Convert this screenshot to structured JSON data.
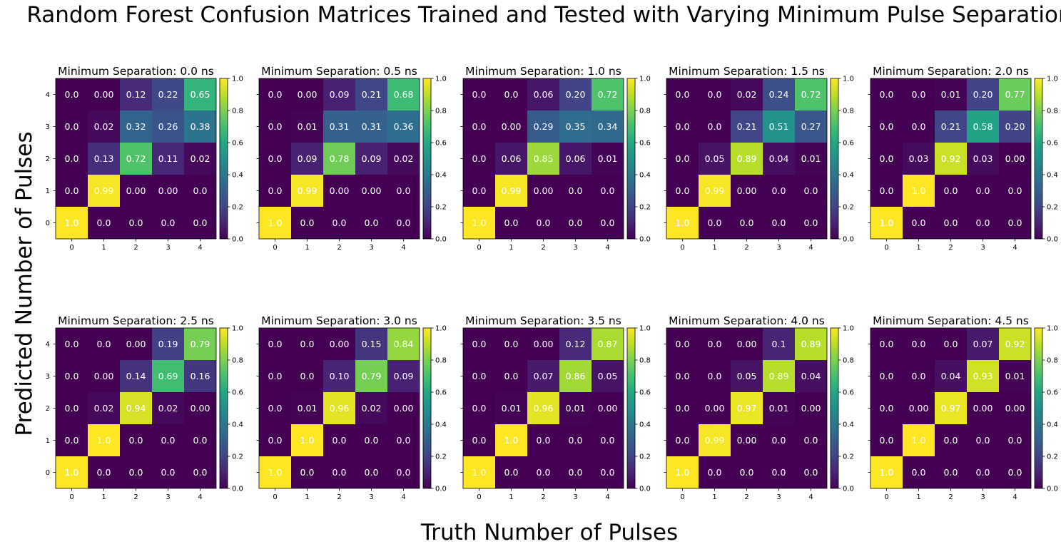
{
  "figure": {
    "title": "Random Forest Confusion Matrices Trained and Tested with Varying Minimum Pulse Separation",
    "xlabel": "Truth Number of Pulses",
    "ylabel": "Predicted Number of Pulses",
    "colormap": "viridis"
  },
  "chart_data": [
    {
      "type": "heatmap",
      "title": "Minimum Separation: 0.0 ns",
      "x": [
        0,
        1,
        2,
        3,
        4
      ],
      "y": [
        0,
        1,
        2,
        3,
        4
      ],
      "clim": [
        0,
        1
      ],
      "colorbar_ticks": [
        "0.0",
        "0.2",
        "0.4",
        "0.6",
        "0.8",
        "1.0"
      ],
      "labels": [
        [
          "1.0",
          "0.0",
          "0.0",
          "0.0",
          "0.0"
        ],
        [
          "0.0",
          "0.99",
          "0.00",
          "0.00",
          "0.0"
        ],
        [
          "0.0",
          "0.13",
          "0.72",
          "0.11",
          "0.02"
        ],
        [
          "0.0",
          "0.02",
          "0.32",
          "0.26",
          "0.38"
        ],
        [
          "0.0",
          "0.00",
          "0.12",
          "0.22",
          "0.65"
        ]
      ]
    },
    {
      "type": "heatmap",
      "title": "Minimum Separation: 0.5 ns",
      "x": [
        0,
        1,
        2,
        3,
        4
      ],
      "y": [
        0,
        1,
        2,
        3,
        4
      ],
      "clim": [
        0,
        1
      ],
      "colorbar_ticks": [
        "0.0",
        "0.2",
        "0.4",
        "0.6",
        "0.8",
        "1.0"
      ],
      "labels": [
        [
          "1.0",
          "0.0",
          "0.0",
          "0.0",
          "0.0"
        ],
        [
          "0.0",
          "0.99",
          "0.00",
          "0.00",
          "0.0"
        ],
        [
          "0.0",
          "0.09",
          "0.78",
          "0.09",
          "0.02"
        ],
        [
          "0.0",
          "0.01",
          "0.31",
          "0.31",
          "0.36"
        ],
        [
          "0.0",
          "0.00",
          "0.09",
          "0.21",
          "0.68"
        ]
      ]
    },
    {
      "type": "heatmap",
      "title": "Minimum Separation: 1.0 ns",
      "x": [
        0,
        1,
        2,
        3,
        4
      ],
      "y": [
        0,
        1,
        2,
        3,
        4
      ],
      "clim": [
        0,
        1
      ],
      "colorbar_ticks": [
        "0.0",
        "0.2",
        "0.4",
        "0.6",
        "0.8",
        "1.0"
      ],
      "labels": [
        [
          "1.0",
          "0.0",
          "0.0",
          "0.0",
          "0.0"
        ],
        [
          "0.0",
          "0.99",
          "0.00",
          "0.0",
          "0.0"
        ],
        [
          "0.0",
          "0.06",
          "0.85",
          "0.06",
          "0.01"
        ],
        [
          "0.0",
          "0.00",
          "0.29",
          "0.35",
          "0.34"
        ],
        [
          "0.0",
          "0.0",
          "0.06",
          "0.20",
          "0.72"
        ]
      ]
    },
    {
      "type": "heatmap",
      "title": "Minimum Separation: 1.5 ns",
      "x": [
        0,
        1,
        2,
        3,
        4
      ],
      "y": [
        0,
        1,
        2,
        3,
        4
      ],
      "clim": [
        0,
        1
      ],
      "colorbar_ticks": [
        "0.0",
        "0.2",
        "0.4",
        "0.6",
        "0.8",
        "1.0"
      ],
      "labels": [
        [
          "1.0",
          "0.0",
          "0.0",
          "0.0",
          "0.0"
        ],
        [
          "0.0",
          "0.99",
          "0.00",
          "0.0",
          "0.0"
        ],
        [
          "0.0",
          "0.05",
          "0.89",
          "0.04",
          "0.01"
        ],
        [
          "0.0",
          "0.0",
          "0.21",
          "0.51",
          "0.27"
        ],
        [
          "0.0",
          "0.0",
          "0.02",
          "0.24",
          "0.72"
        ]
      ]
    },
    {
      "type": "heatmap",
      "title": "Minimum Separation: 2.0 ns",
      "x": [
        0,
        1,
        2,
        3,
        4
      ],
      "y": [
        0,
        1,
        2,
        3,
        4
      ],
      "clim": [
        0,
        1
      ],
      "colorbar_ticks": [
        "0.0",
        "0.2",
        "0.4",
        "0.6",
        "0.8",
        "1.0"
      ],
      "labels": [
        [
          "1.0",
          "0.0",
          "0.0",
          "0.0",
          "0.0"
        ],
        [
          "0.0",
          "1.0",
          "0.0",
          "0.0",
          "0.0"
        ],
        [
          "0.0",
          "0.03",
          "0.92",
          "0.03",
          "0.00"
        ],
        [
          "0.0",
          "0.0",
          "0.21",
          "0.58",
          "0.20"
        ],
        [
          "0.0",
          "0.0",
          "0.01",
          "0.20",
          "0.77"
        ]
      ]
    },
    {
      "type": "heatmap",
      "title": "Minimum Separation: 2.5 ns",
      "x": [
        0,
        1,
        2,
        3,
        4
      ],
      "y": [
        0,
        1,
        2,
        3,
        4
      ],
      "clim": [
        0,
        1
      ],
      "colorbar_ticks": [
        "0.0",
        "0.2",
        "0.4",
        "0.6",
        "0.8",
        "1.0"
      ],
      "labels": [
        [
          "1.0",
          "0.0",
          "0.0",
          "0.0",
          "0.0"
        ],
        [
          "0.0",
          "1.0",
          "0.0",
          "0.0",
          "0.0"
        ],
        [
          "0.0",
          "0.02",
          "0.94",
          "0.02",
          "0.00"
        ],
        [
          "0.0",
          "0.00",
          "0.14",
          "0.69",
          "0.16"
        ],
        [
          "0.0",
          "0.0",
          "0.00",
          "0.19",
          "0.79"
        ]
      ]
    },
    {
      "type": "heatmap",
      "title": "Minimum Separation: 3.0 ns",
      "x": [
        0,
        1,
        2,
        3,
        4
      ],
      "y": [
        0,
        1,
        2,
        3,
        4
      ],
      "clim": [
        0,
        1
      ],
      "colorbar_ticks": [
        "0.0",
        "0.2",
        "0.4",
        "0.6",
        "0.8",
        "1.0"
      ],
      "labels": [
        [
          "1.0",
          "0.0",
          "0.0",
          "0.0",
          "0.0"
        ],
        [
          "0.0",
          "1.0",
          "0.0",
          "0.0",
          "0.0"
        ],
        [
          "0.0",
          "0.01",
          "0.96",
          "0.02",
          "0.00"
        ],
        [
          "0.0",
          "0.0",
          "0.10",
          "0.79",
          "0.09"
        ],
        [
          "0.0",
          "0.0",
          "0.00",
          "0.15",
          "0.84"
        ]
      ]
    },
    {
      "type": "heatmap",
      "title": "Minimum Separation: 3.5 ns",
      "x": [
        0,
        1,
        2,
        3,
        4
      ],
      "y": [
        0,
        1,
        2,
        3,
        4
      ],
      "clim": [
        0,
        1
      ],
      "colorbar_ticks": [
        "0.0",
        "0.2",
        "0.4",
        "0.6",
        "0.8",
        "1.0"
      ],
      "labels": [
        [
          "1.0",
          "0.0",
          "0.0",
          "0.0",
          "0.0"
        ],
        [
          "0.0",
          "1.0",
          "0.0",
          "0.0",
          "0.0"
        ],
        [
          "0.0",
          "0.01",
          "0.96",
          "0.01",
          "0.00"
        ],
        [
          "0.0",
          "0.0",
          "0.07",
          "0.86",
          "0.05"
        ],
        [
          "0.0",
          "0.0",
          "0.00",
          "0.12",
          "0.87"
        ]
      ]
    },
    {
      "type": "heatmap",
      "title": "Minimum Separation: 4.0 ns",
      "x": [
        0,
        1,
        2,
        3,
        4
      ],
      "y": [
        0,
        1,
        2,
        3,
        4
      ],
      "clim": [
        0,
        1
      ],
      "colorbar_ticks": [
        "0.0",
        "0.2",
        "0.4",
        "0.6",
        "0.8",
        "1.0"
      ],
      "labels": [
        [
          "1.0",
          "0.0",
          "0.0",
          "0.0",
          "0.0"
        ],
        [
          "0.0",
          "0.99",
          "0.00",
          "0.0",
          "0.0"
        ],
        [
          "0.0",
          "0.00",
          "0.97",
          "0.01",
          "0.00"
        ],
        [
          "0.0",
          "0.0",
          "0.05",
          "0.89",
          "0.04"
        ],
        [
          "0.0",
          "0.0",
          "0.00",
          "0.1",
          "0.89"
        ]
      ]
    },
    {
      "type": "heatmap",
      "title": "Minimum Separation: 4.5 ns",
      "x": [
        0,
        1,
        2,
        3,
        4
      ],
      "y": [
        0,
        1,
        2,
        3,
        4
      ],
      "clim": [
        0,
        1
      ],
      "colorbar_ticks": [
        "0.0",
        "0.2",
        "0.4",
        "0.6",
        "0.8",
        "1.0"
      ],
      "labels": [
        [
          "1.0",
          "0.0",
          "0.0",
          "0.0",
          "0.0"
        ],
        [
          "0.0",
          "1.0",
          "0.0",
          "0.0",
          "0.0"
        ],
        [
          "0.0",
          "0.00",
          "0.97",
          "0.00",
          "0.00"
        ],
        [
          "0.0",
          "0.0",
          "0.04",
          "0.93",
          "0.01"
        ],
        [
          "0.0",
          "0.0",
          "0.0",
          "0.07",
          "0.92"
        ]
      ]
    }
  ]
}
